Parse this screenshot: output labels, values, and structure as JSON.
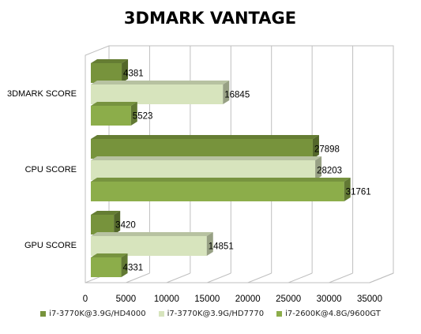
{
  "chart_data": {
    "type": "bar",
    "orientation": "horizontal",
    "style": "3d",
    "title": "3DMARK VANTAGE",
    "categories": [
      "3DMARK SCORE",
      "CPU SCORE",
      "GPU SCORE"
    ],
    "series": [
      {
        "name": "i7-3770K@3.9G/HD4000",
        "color": "#77933c",
        "values": [
          4381,
          27898,
          3420
        ]
      },
      {
        "name": "i7-3770K@3.9G/HD7770",
        "color": "#d7e4bd",
        "values": [
          16845,
          28203,
          14851
        ]
      },
      {
        "name": "i7-2600K@4.8G/9600GT",
        "color": "#8cad4a",
        "values": [
          5523,
          31761,
          4331
        ]
      }
    ],
    "xlim": [
      0,
      35000
    ],
    "xticks": [
      0,
      5000,
      10000,
      15000,
      20000,
      25000,
      30000,
      35000
    ],
    "grid": true,
    "legend_position": "bottom"
  }
}
